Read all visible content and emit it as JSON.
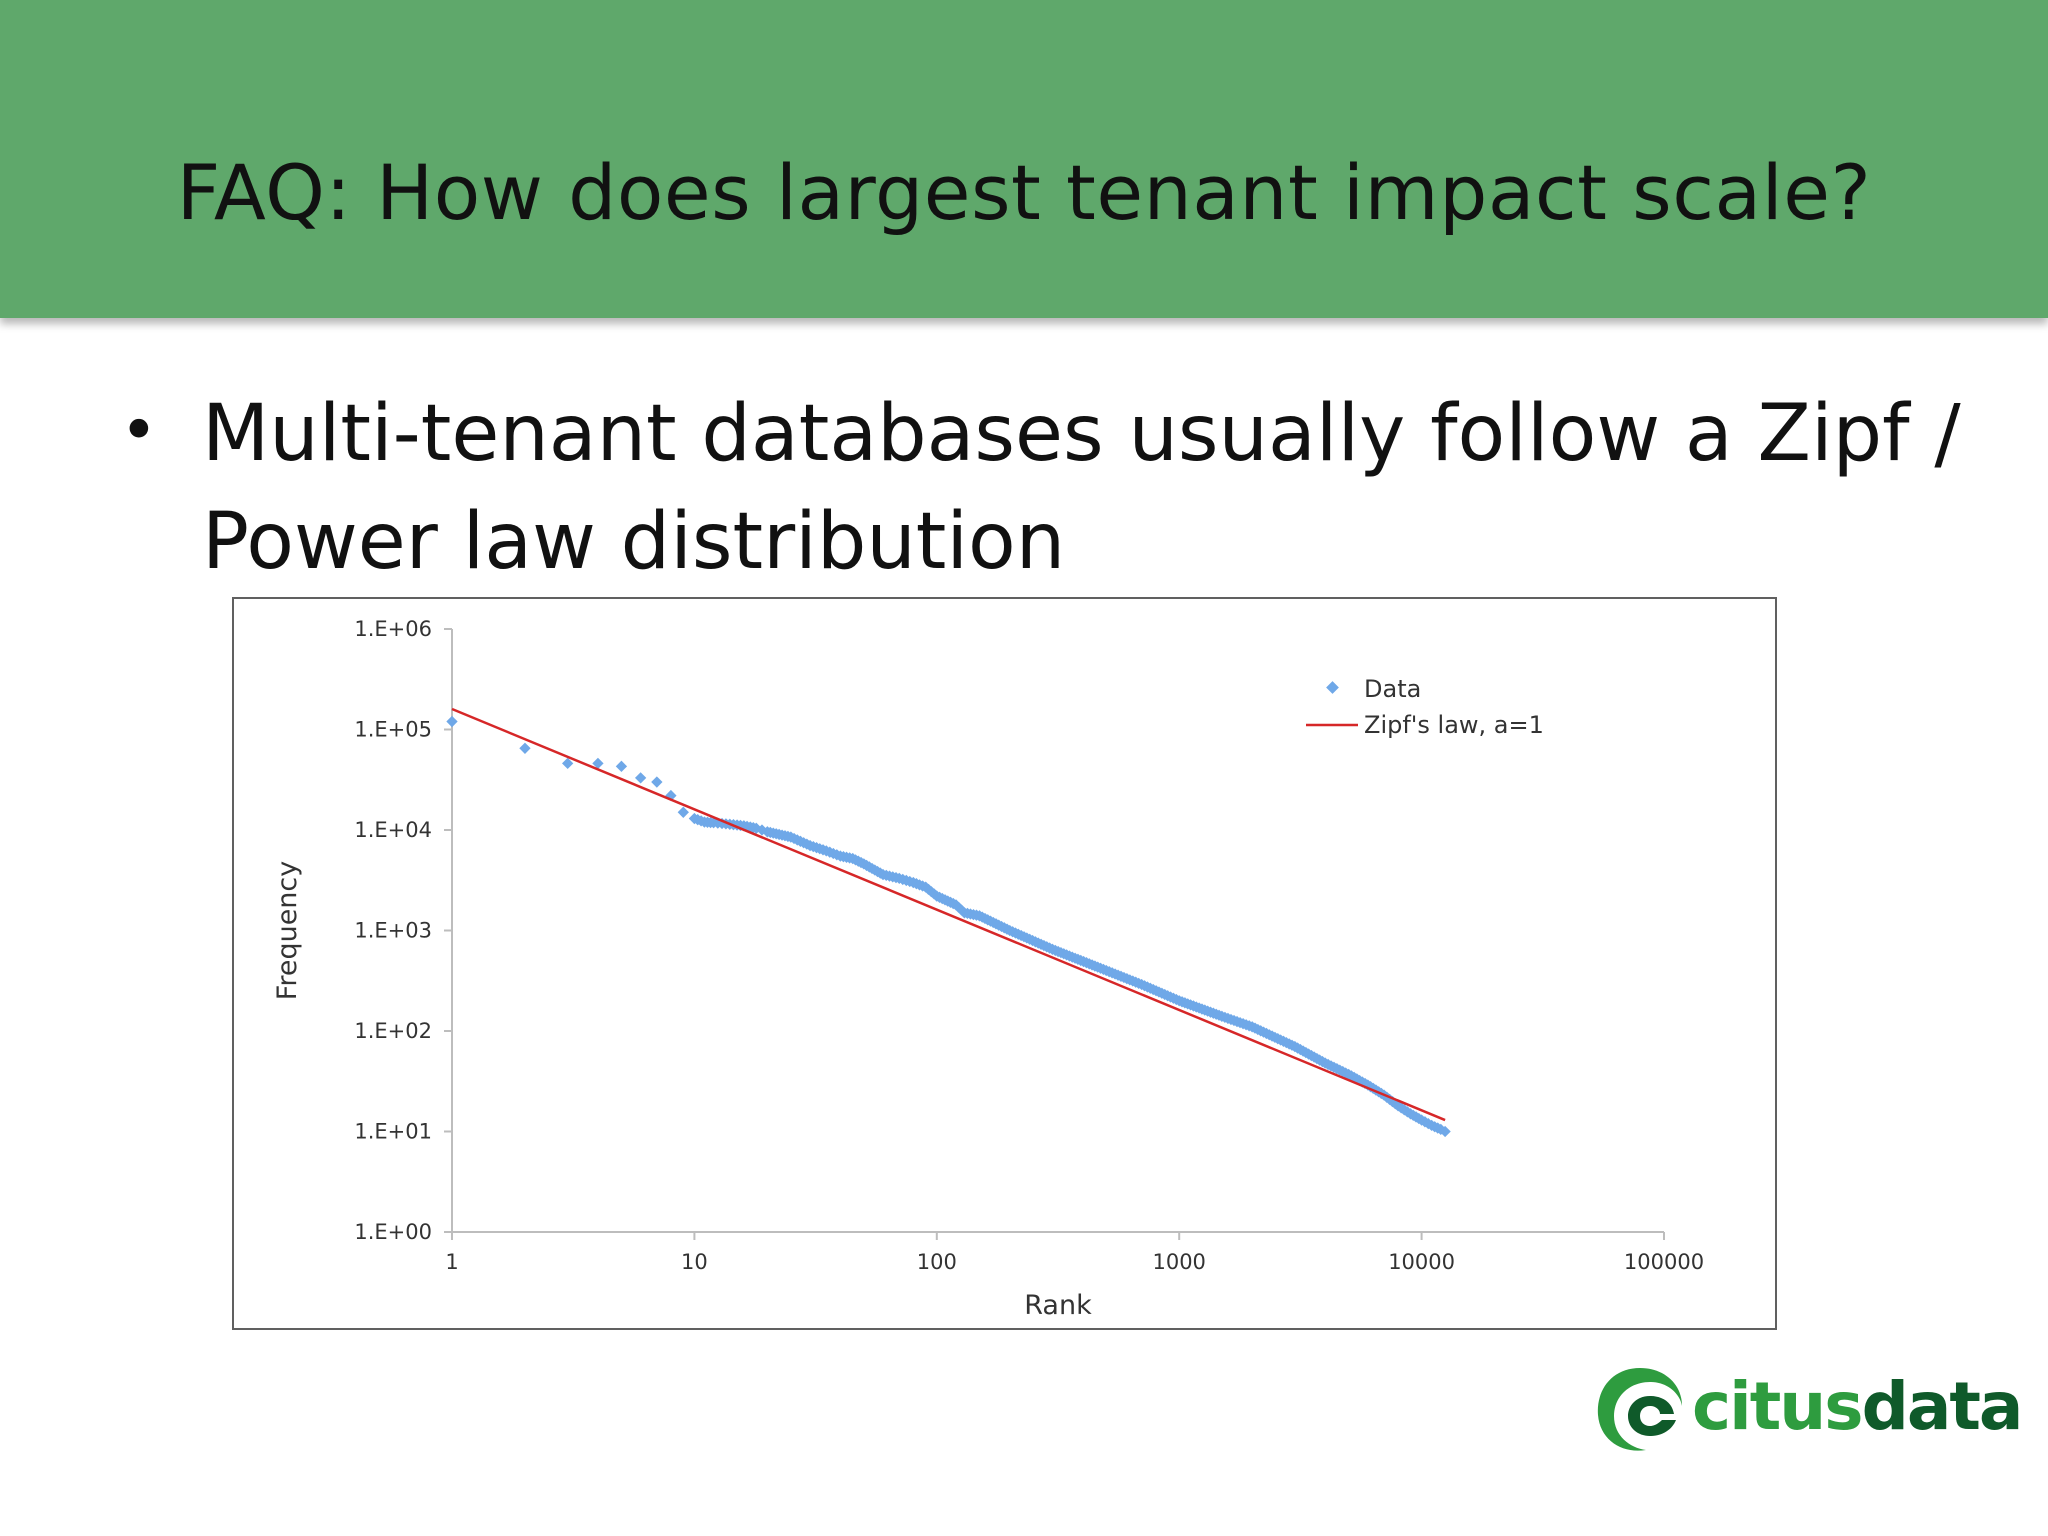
{
  "slide": {
    "title": "FAQ: How does largest tenant impact scale?",
    "bullet": "Multi-tenant databases usually follow a Zipf / Power law distribution",
    "bullet_line1": "Multi-tenant databases usually follow a Zipf /",
    "bullet_line2": "Power law distribution",
    "accent_color": "#5fa86b"
  },
  "logo": {
    "text_part1": "citus",
    "text_part2": "data",
    "color_light": "#2e9c3f",
    "color_dark": "#0f5a2a",
    "icon": "citusdata-swirl-logo-icon"
  },
  "chart_data": {
    "type": "scatter",
    "xlabel": "Rank",
    "ylabel": "Frequency",
    "xscale": "log",
    "yscale": "log",
    "xlim": [
      1,
      100000
    ],
    "ylim": [
      1,
      1000000
    ],
    "x_ticks": [
      "1",
      "10",
      "100",
      "1000",
      "10000",
      "100000"
    ],
    "y_ticks": [
      "1.E+00",
      "1.E+01",
      "1.E+02",
      "1.E+03",
      "1.E+04",
      "1.E+05",
      "1.E+06"
    ],
    "legend_position": "top-right",
    "grid": false,
    "series": [
      {
        "name": "Data",
        "kind": "points",
        "color": "#6fa8e8",
        "points": [
          [
            1,
            120000
          ],
          [
            2,
            65000
          ],
          [
            3,
            46000
          ],
          [
            4,
            46000
          ],
          [
            5,
            43000
          ],
          [
            6,
            33000
          ],
          [
            7,
            30000
          ],
          [
            8,
            22000
          ],
          [
            9,
            15000
          ],
          [
            10,
            13000
          ],
          [
            11,
            12000
          ],
          [
            12,
            11800
          ],
          [
            13,
            11600
          ],
          [
            14,
            11400
          ],
          [
            15,
            11200
          ],
          [
            16,
            11000
          ],
          [
            17,
            10700
          ],
          [
            18,
            10400
          ],
          [
            19,
            10000
          ],
          [
            20,
            9600
          ],
          [
            25,
            8500
          ],
          [
            30,
            7000
          ],
          [
            35,
            6200
          ],
          [
            40,
            5500
          ],
          [
            45,
            5200
          ],
          [
            50,
            4600
          ],
          [
            60,
            3600
          ],
          [
            70,
            3300
          ],
          [
            80,
            3000
          ],
          [
            90,
            2700
          ],
          [
            100,
            2200
          ],
          [
            120,
            1800
          ],
          [
            130,
            1500
          ],
          [
            150,
            1400
          ],
          [
            200,
            1000
          ],
          [
            300,
            650
          ],
          [
            500,
            400
          ],
          [
            700,
            290
          ],
          [
            1000,
            200
          ],
          [
            1500,
            140
          ],
          [
            2000,
            110
          ],
          [
            3000,
            70
          ],
          [
            4000,
            48
          ],
          [
            5000,
            37
          ],
          [
            6000,
            29
          ],
          [
            7000,
            23
          ],
          [
            8000,
            18
          ],
          [
            9000,
            15
          ],
          [
            10000,
            13
          ],
          [
            11000,
            11.5
          ],
          [
            12000,
            10.5
          ],
          [
            12500,
            10
          ]
        ]
      },
      {
        "name": "Zipf's law, a=1",
        "kind": "line",
        "color": "#d62728",
        "points": [
          [
            1,
            160000
          ],
          [
            12500,
            13
          ]
        ]
      }
    ]
  }
}
